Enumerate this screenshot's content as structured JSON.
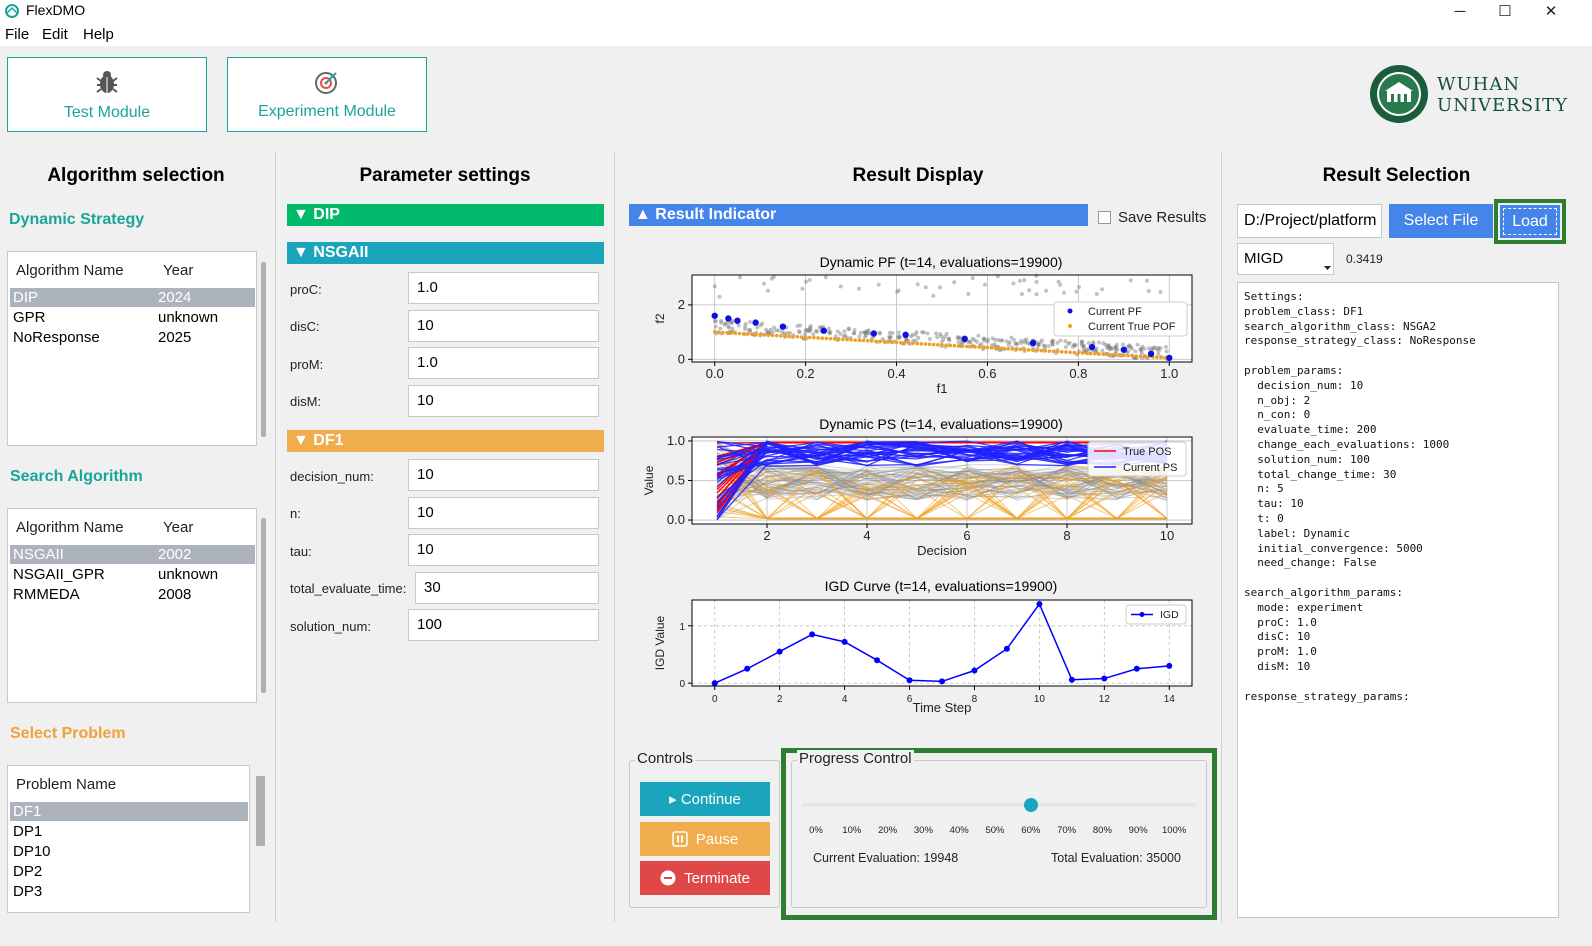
{
  "window": {
    "title": "FlexDMO",
    "minimize": "─",
    "maximize": "☐",
    "close": "✕"
  },
  "menu": [
    "File",
    "Edit",
    "Help"
  ],
  "modules": {
    "test": "Test Module",
    "experiment": "Experiment Module"
  },
  "logo": {
    "line1": "WUHAN",
    "line2": "UNIVERSITY"
  },
  "algorithm_selection": {
    "title": "Algorithm selection",
    "dynamic_strategy": {
      "label": "Dynamic Strategy",
      "headers": [
        "Algorithm Name",
        "Year"
      ],
      "rows": [
        [
          "DIP",
          "2024"
        ],
        [
          "GPR",
          "unknown"
        ],
        [
          "NoResponse",
          "2025"
        ]
      ]
    },
    "search_algorithm": {
      "label": "Search Algorithm",
      "headers": [
        "Algorithm Name",
        "Year"
      ],
      "rows": [
        [
          "NSGAII",
          "2002"
        ],
        [
          "NSGAII_GPR",
          "unknown"
        ],
        [
          "RMMEDA",
          "2008"
        ]
      ]
    },
    "select_problem": {
      "label": "Select Problem",
      "header": "Problem Name",
      "rows": [
        "DF1",
        "DP1",
        "DP10",
        "DP2",
        "DP3"
      ]
    }
  },
  "parameter_settings": {
    "title": "Parameter settings",
    "dip": "▼ DIP",
    "nsgaii": "▼ NSGAII",
    "nsgaii_params": [
      {
        "label": "proC:",
        "value": "1.0"
      },
      {
        "label": "disC:",
        "value": "10"
      },
      {
        "label": "proM:",
        "value": "1.0"
      },
      {
        "label": "disM:",
        "value": "10"
      }
    ],
    "df1": "▼ DF1",
    "df1_params": [
      {
        "label": "decision_num:",
        "value": "10"
      },
      {
        "label": "n:",
        "value": "10"
      },
      {
        "label": "tau:",
        "value": "10"
      },
      {
        "label": "total_evaluate_time:",
        "value": "30"
      },
      {
        "label": "solution_num:",
        "value": "100"
      }
    ]
  },
  "result_display": {
    "title": "Result Display",
    "indicator_bar": "▲ Result Indicator",
    "save_results": "Save Results"
  },
  "chart_data": [
    {
      "type": "scatter",
      "title": "Dynamic PF (t=14, evaluations=19900)",
      "xlabel": "f1",
      "ylabel": "f2",
      "xlim": [
        -0.05,
        1.05
      ],
      "ylim": [
        -0.1,
        3.1
      ],
      "xticks": [
        "0.0",
        "0.2",
        "0.4",
        "0.6",
        "0.8",
        "1.0"
      ],
      "yticks": [
        "0",
        "2"
      ],
      "grid": true,
      "legend": "right",
      "series": [
        {
          "name": "Current PF",
          "color": "#1010e0",
          "points": [
            [
              0.0,
              1.6
            ],
            [
              0.03,
              1.5
            ],
            [
              0.05,
              1.42
            ],
            [
              0.09,
              1.35
            ],
            [
              0.15,
              1.2
            ],
            [
              0.24,
              1.05
            ],
            [
              0.35,
              0.95
            ],
            [
              0.42,
              0.9
            ],
            [
              0.55,
              0.75
            ],
            [
              0.7,
              0.6
            ],
            [
              0.83,
              0.45
            ],
            [
              0.9,
              0.35
            ],
            [
              0.96,
              0.2
            ],
            [
              1.0,
              0.05
            ]
          ]
        },
        {
          "name": "Current True POF",
          "color": "#f0a020"
        }
      ]
    },
    {
      "type": "line",
      "title": "Dynamic PS (t=14, evaluations=19900)",
      "xlabel": "Decision",
      "ylabel": "Value",
      "xlim": [
        0.5,
        10.5
      ],
      "ylim": [
        -0.05,
        1.05
      ],
      "xticks": [
        "2",
        "4",
        "6",
        "8",
        "10"
      ],
      "yticks": [
        "0.0",
        "0.5",
        "1.0"
      ],
      "grid": true,
      "legend": "top-right",
      "series": [
        {
          "name": "True POS",
          "color": "#ff0000"
        },
        {
          "name": "Current PS",
          "color": "#2020ff"
        }
      ]
    },
    {
      "type": "line",
      "title": "IGD Curve (t=14, evaluations=19900)",
      "xlabel": "Time Step",
      "ylabel": "IGD Value",
      "xlim": [
        -0.7,
        14.7
      ],
      "ylim": [
        -0.05,
        1.45
      ],
      "xticks": [
        "0",
        "2",
        "4",
        "6",
        "8",
        "10",
        "12",
        "14"
      ],
      "yticks": [
        "0",
        "1"
      ],
      "grid": true,
      "legend": "top-right",
      "series": [
        {
          "name": "IGD",
          "color": "#0000ff",
          "x": [
            0,
            1,
            2,
            3,
            4,
            5,
            6,
            7,
            8,
            9,
            10,
            11,
            12,
            13,
            14
          ],
          "values": [
            0.0,
            0.25,
            0.55,
            0.85,
            0.72,
            0.4,
            0.05,
            0.03,
            0.22,
            0.6,
            1.38,
            0.06,
            0.08,
            0.25,
            0.3
          ]
        }
      ]
    }
  ],
  "controls": {
    "label": "Controls",
    "continue": "▸ Continue",
    "pause": "Pause",
    "terminate": "Terminate"
  },
  "progress": {
    "label": "Progress Control",
    "value": 0.6,
    "ticks": [
      "0%",
      "10%",
      "20%",
      "30%",
      "40%",
      "50%",
      "60%",
      "70%",
      "80%",
      "90%",
      "100%"
    ],
    "current": "Current Evaluation: 19948",
    "total": "Total Evaluation: 35000"
  },
  "result_selection": {
    "title": "Result Selection",
    "path": "D:/Project/platform",
    "select_file": "Select File",
    "load": "Load",
    "metric": "MIGD",
    "metric_value": "0.3419",
    "settings_text": "Settings:\nproblem_class: DF1\nsearch_algorithm_class: NSGA2\nresponse_strategy_class: NoResponse\n\nproblem_params:\n  decision_num: 10\n  n_obj: 2\n  n_con: 0\n  evaluate_time: 200\n  change_each_evaluations: 1000\n  solution_num: 100\n  total_change_time: 30\n  n: 5\n  tau: 10\n  t: 0\n  label: Dynamic\n  initial_convergence: 5000\n  need_change: False\n\nsearch_algorithm_params:\n  mode: experiment\n  proC: 1.0\n  disC: 10\n  proM: 1.0\n  disM: 10\n\nresponse_strategy_params:"
  },
  "colors": {
    "teal": "#1aa59a",
    "green": "#00b96b",
    "nsga": "#1aa5bd",
    "orange": "#f0ad4e",
    "blue": "#4584e8",
    "red": "#e04848",
    "highlight": "#2e7d32"
  }
}
